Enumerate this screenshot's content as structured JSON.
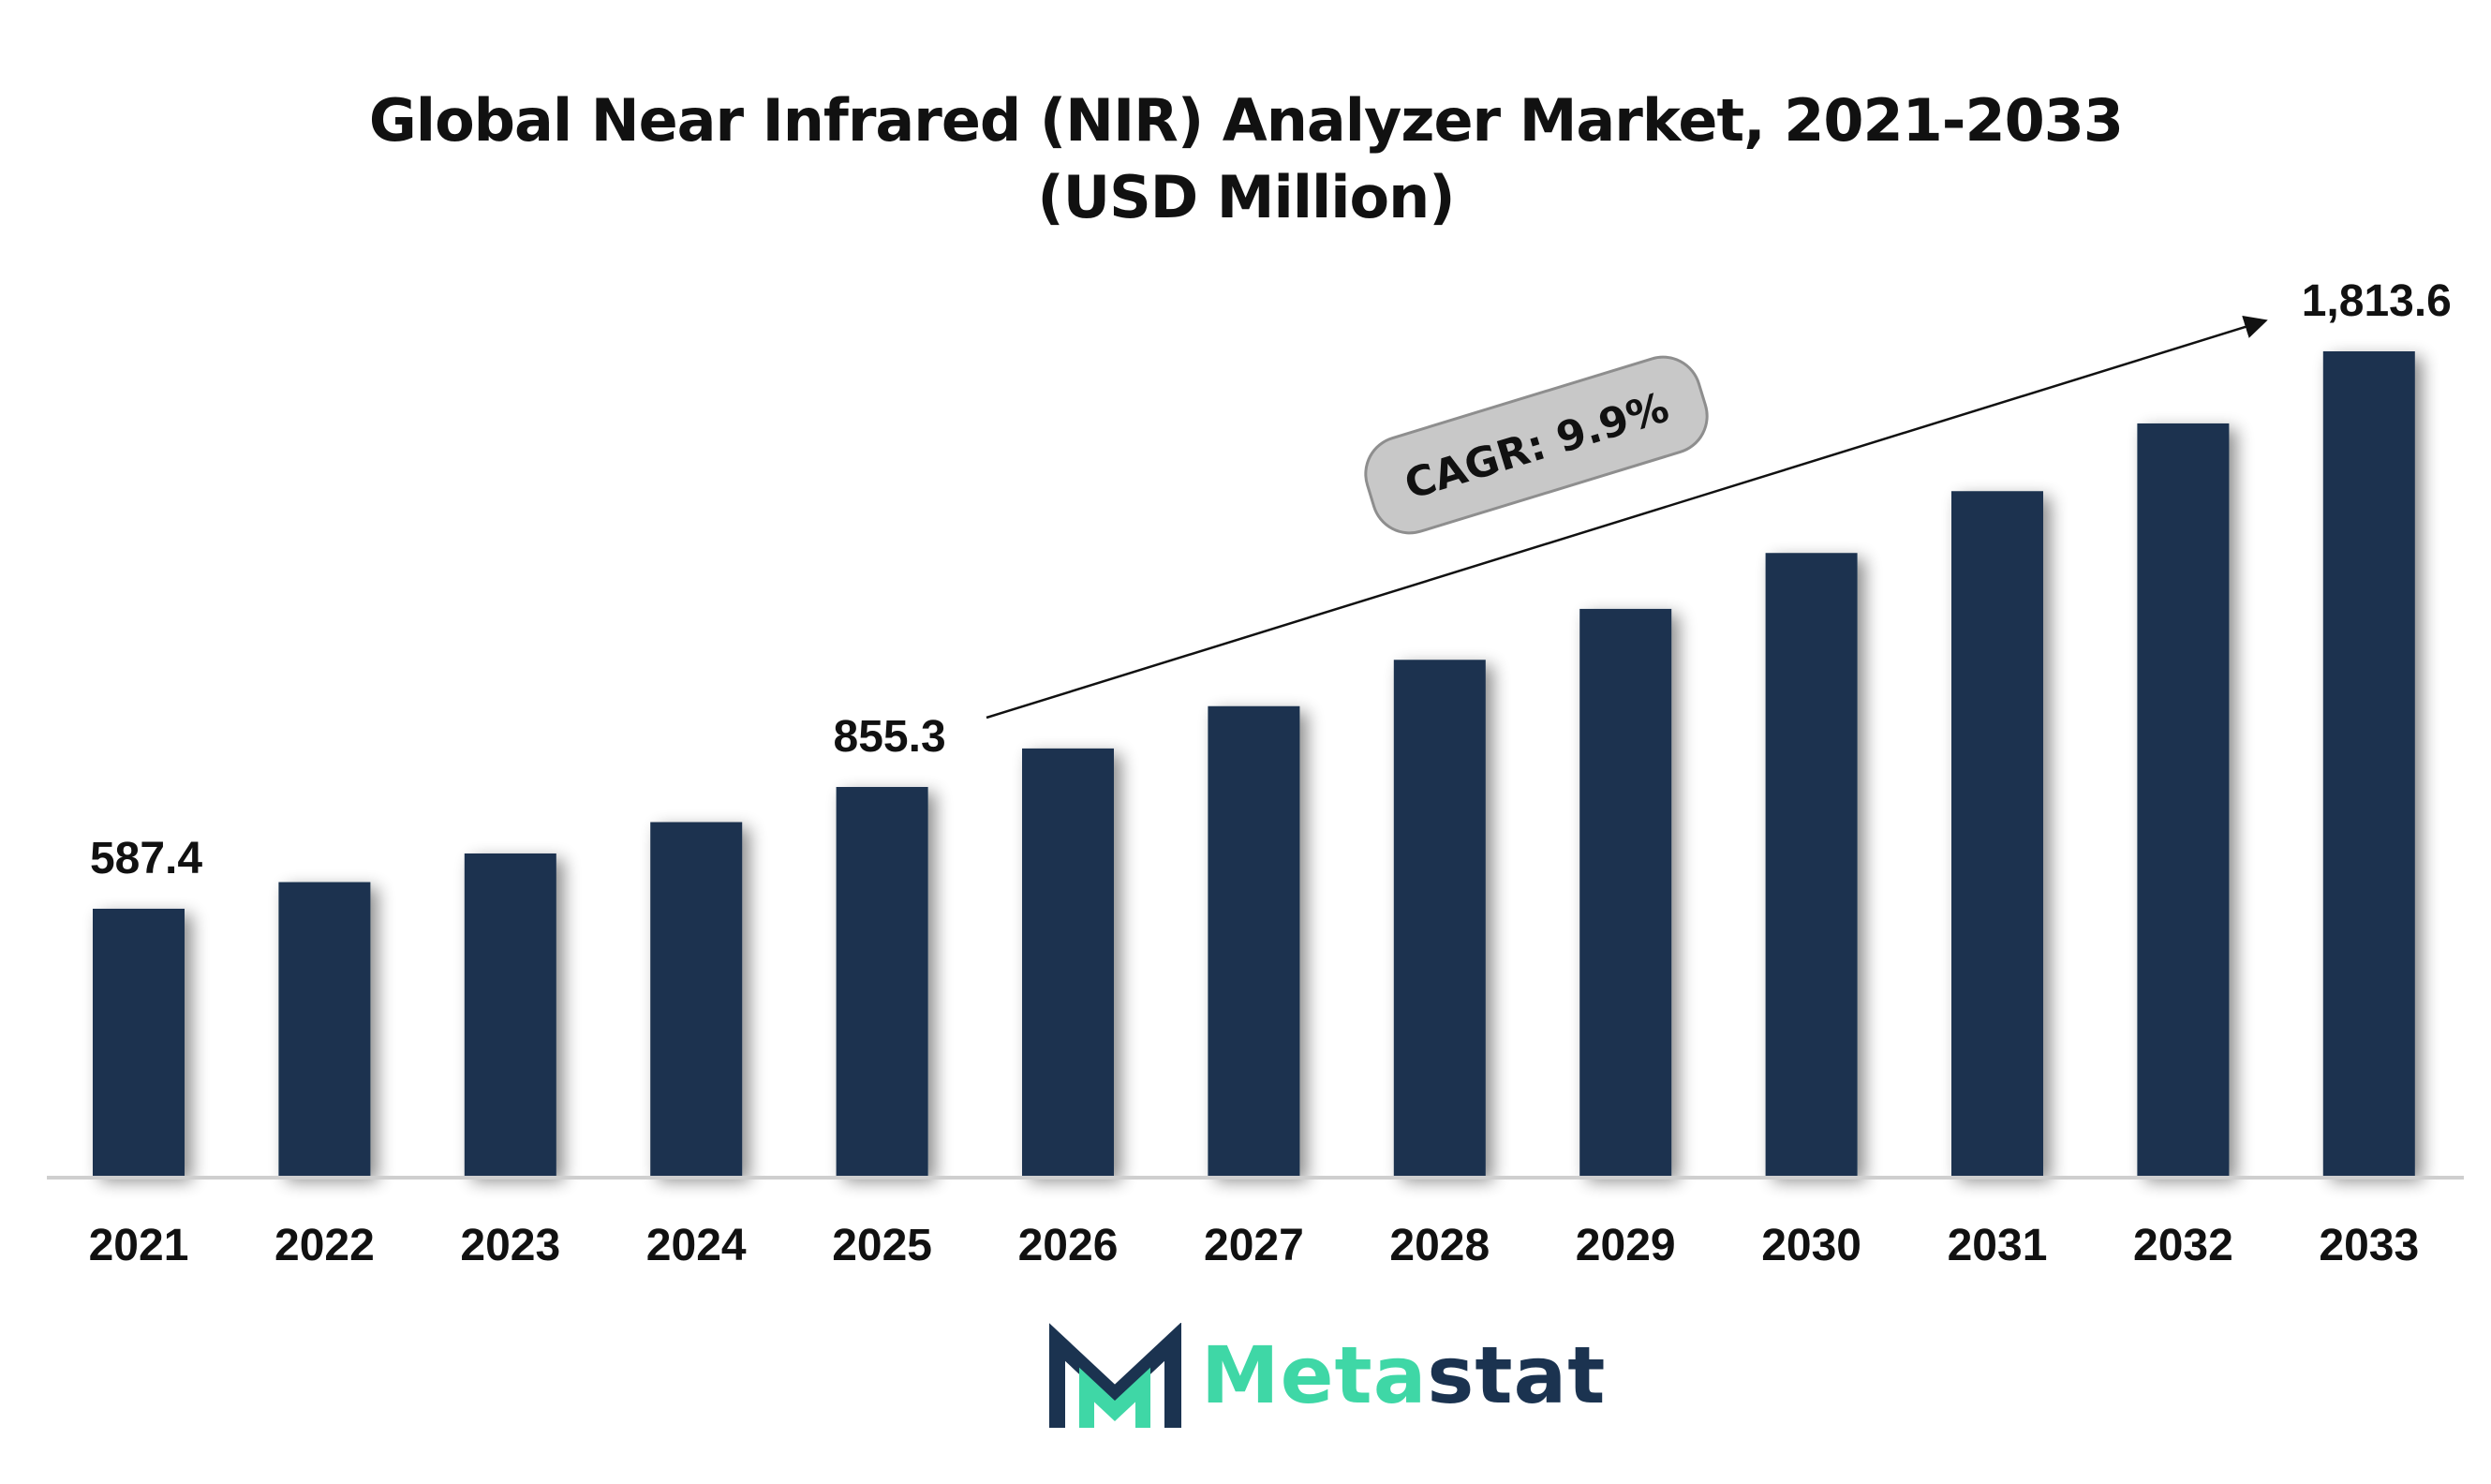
{
  "chart_data": {
    "type": "bar",
    "title": "Global Near Infrared (NIR) Analyzer Market, 2021-2033 (USD Million)",
    "xlabel": "",
    "ylabel": "",
    "categories": [
      "2021",
      "2022",
      "2023",
      "2024",
      "2025",
      "2026",
      "2027",
      "2028",
      "2029",
      "2030",
      "2031",
      "2032",
      "2033"
    ],
    "values": [
      587.4,
      646.0,
      709.0,
      778.0,
      855.3,
      940.0,
      1033.0,
      1135.0,
      1247.0,
      1370.0,
      1506.0,
      1655.0,
      1813.6
    ],
    "ylim": [
      0,
      1813.6
    ],
    "data_labels": [
      {
        "category": "2021",
        "text": "587.4"
      },
      {
        "category": "2025",
        "text": "855.3"
      },
      {
        "category": "2033",
        "text": "1,813.6"
      }
    ],
    "annotation": {
      "text": "CAGR: 9.9%"
    },
    "bar_color": "#1b3350",
    "grid": false
  },
  "logo": {
    "text_part1": "Meta",
    "text_part2": "stat",
    "accent_color": "#3fd7a6",
    "dark_color": "#1b3350"
  }
}
